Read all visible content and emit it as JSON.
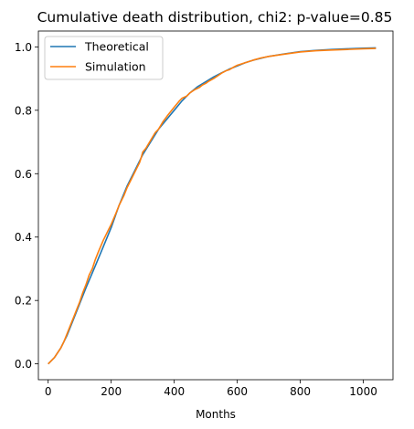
{
  "chart_data": {
    "type": "line",
    "title": "Cumulative death distribution, chi2: p-value=0.85",
    "xlabel": "Months",
    "ylabel": "",
    "xlim": [
      -31,
      1094
    ],
    "ylim": [
      -0.05,
      1.05
    ],
    "xticks": [
      0,
      200,
      400,
      600,
      800,
      1000
    ],
    "yticks": [
      0.0,
      0.2,
      0.4,
      0.6,
      0.8,
      1.0
    ],
    "xtick_labels": [
      "0",
      "200",
      "400",
      "600",
      "800",
      "1000"
    ],
    "ytick_labels": [
      "0.0",
      "0.2",
      "0.4",
      "0.6",
      "0.8",
      "1.0"
    ],
    "grid": false,
    "legend": "top-left",
    "series": [
      {
        "name": "Theoretical",
        "color": "#1f77b4",
        "x": [
          0,
          20,
          40,
          60,
          80,
          100,
          120,
          150,
          175,
          200,
          225,
          250,
          275,
          300,
          325,
          350,
          375,
          400,
          425,
          450,
          475,
          500,
          525,
          550,
          575,
          600,
          625,
          650,
          700,
          750,
          800,
          850,
          900,
          950,
          1000,
          1040
        ],
        "y": [
          0.0,
          0.02,
          0.05,
          0.09,
          0.14,
          0.19,
          0.24,
          0.31,
          0.37,
          0.43,
          0.5,
          0.56,
          0.61,
          0.66,
          0.7,
          0.74,
          0.77,
          0.8,
          0.83,
          0.855,
          0.875,
          0.89,
          0.905,
          0.918,
          0.93,
          0.94,
          0.95,
          0.958,
          0.97,
          0.978,
          0.985,
          0.989,
          0.992,
          0.994,
          0.996,
          0.997
        ]
      },
      {
        "name": "Simulation",
        "color": "#ff7f0e",
        "x": [
          0,
          10,
          20,
          30,
          40,
          50,
          60,
          70,
          80,
          90,
          100,
          110,
          120,
          130,
          140,
          150,
          160,
          175,
          190,
          200,
          215,
          225,
          240,
          250,
          265,
          280,
          290,
          295,
          300,
          310,
          325,
          340,
          350,
          365,
          380,
          400,
          415,
          425,
          440,
          450,
          465,
          480,
          490,
          500,
          510,
          525,
          540,
          550,
          565,
          575,
          590,
          600,
          625,
          650,
          675,
          700,
          750,
          800,
          850,
          900,
          950,
          1000,
          1040
        ],
        "y": [
          0.0,
          0.01,
          0.02,
          0.035,
          0.05,
          0.07,
          0.095,
          0.12,
          0.145,
          0.17,
          0.195,
          0.225,
          0.25,
          0.28,
          0.3,
          0.33,
          0.355,
          0.39,
          0.42,
          0.44,
          0.475,
          0.5,
          0.53,
          0.555,
          0.585,
          0.615,
          0.635,
          0.65,
          0.668,
          0.68,
          0.705,
          0.73,
          0.74,
          0.765,
          0.785,
          0.81,
          0.828,
          0.838,
          0.845,
          0.855,
          0.865,
          0.872,
          0.88,
          0.885,
          0.892,
          0.9,
          0.91,
          0.917,
          0.925,
          0.928,
          0.937,
          0.942,
          0.95,
          0.958,
          0.965,
          0.97,
          0.977,
          0.984,
          0.988,
          0.99,
          0.992,
          0.994,
          0.995
        ]
      }
    ]
  }
}
